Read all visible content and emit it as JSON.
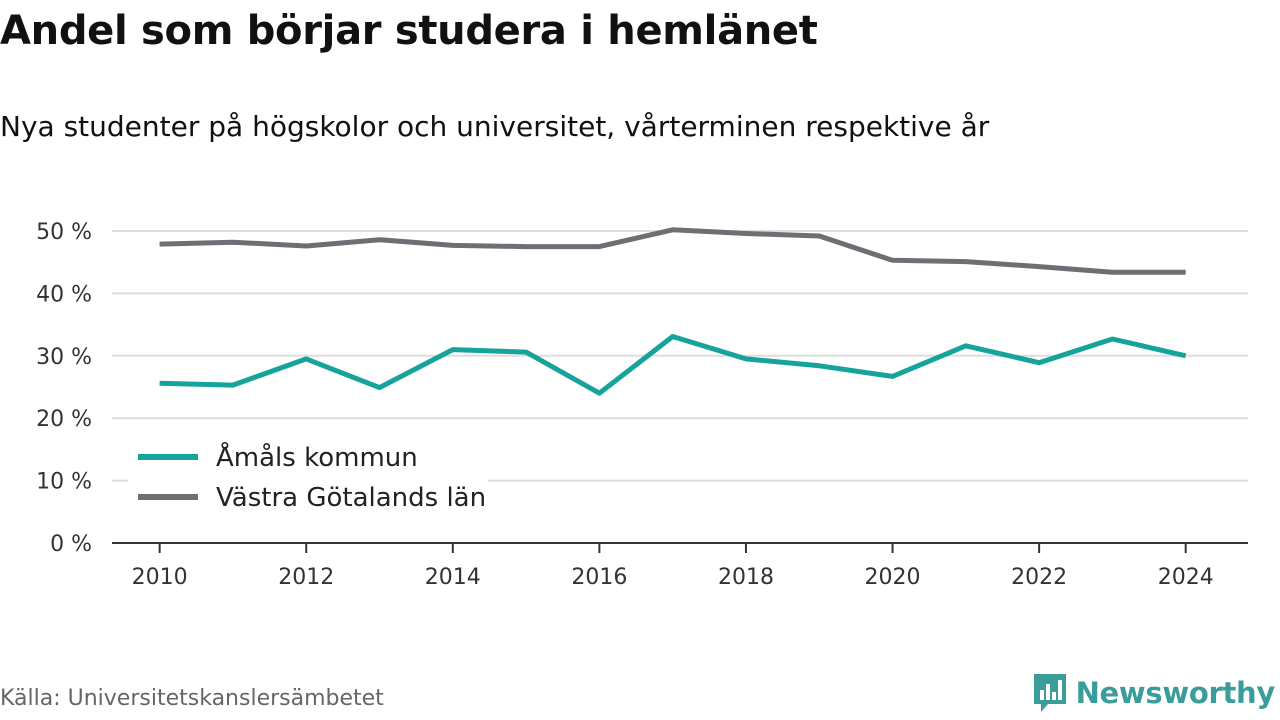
{
  "header": {
    "title": "Andel som börjar studera i hemlänet",
    "subtitle": "Nya studenter på högskolor och universitet, vårterminen respektive år"
  },
  "footer": {
    "source": "Källa: Universitetskanslersämbetet",
    "brand": "Newsworthy",
    "brand_icon": "bar-chart-bubble-icon",
    "brand_color": "#3a9d9a"
  },
  "chart_data": {
    "type": "line",
    "x": [
      2010,
      2011,
      2012,
      2013,
      2014,
      2015,
      2016,
      2017,
      2018,
      2019,
      2020,
      2021,
      2022,
      2023,
      2024
    ],
    "x_ticks": [
      "2010",
      "2012",
      "2014",
      "2016",
      "2018",
      "2020",
      "2022",
      "2024"
    ],
    "y_ticks": [
      "0 %",
      "10 %",
      "20 %",
      "30 %",
      "40 %",
      "50 %"
    ],
    "ylim": [
      0,
      50
    ],
    "grid": "horizontal",
    "legend_position": "bottom-left",
    "series": [
      {
        "name": "Åmåls kommun",
        "color": "#16a39b",
        "values": [
          25.6,
          25.3,
          29.5,
          24.9,
          31.0,
          30.6,
          24.0,
          33.1,
          29.5,
          28.4,
          26.7,
          31.6,
          28.9,
          32.7,
          30.0
        ]
      },
      {
        "name": "Västra Götalands län",
        "color": "#6f6e75",
        "values": [
          47.9,
          48.2,
          47.6,
          48.6,
          47.7,
          47.5,
          47.5,
          50.2,
          49.6,
          49.2,
          45.3,
          45.1,
          44.3,
          43.4,
          43.4
        ]
      }
    ]
  }
}
